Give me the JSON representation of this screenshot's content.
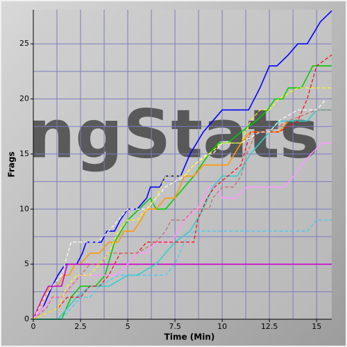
{
  "chart_data": {
    "type": "line",
    "watermark": "ngStats",
    "xlabel": "Time (Min)",
    "ylabel": "Frags",
    "xlim": [
      0,
      15.8
    ],
    "ylim": [
      0,
      28.1
    ],
    "xticks": [
      0,
      2.5,
      5,
      7.5,
      10,
      12.5,
      15
    ],
    "yticks": [
      0,
      5,
      10,
      15,
      20,
      25
    ],
    "xminor": [
      1.25,
      3.75,
      6.25,
      8.75,
      11.25,
      13.75
    ],
    "yminor": [
      2.5,
      7.5,
      12.5,
      17.5,
      22.5
    ],
    "grid": true,
    "series": [
      {
        "color": "#0000ff",
        "dashed": false,
        "x": [
          0,
          0.5,
          1,
          1.3,
          1.7,
          2.3,
          2.6,
          2.8,
          3.6,
          3.9,
          4.3,
          4.6,
          5,
          5.5,
          6,
          6.2,
          6.7,
          7,
          7.8,
          8.3,
          9,
          9.5,
          10,
          10.3,
          11.4,
          12,
          12.5,
          12.9,
          13.5,
          14,
          14.5,
          15.2,
          15.8
        ],
        "values": [
          0,
          1,
          3,
          4,
          5,
          5,
          6,
          7,
          7,
          8,
          8,
          9,
          10,
          10,
          11,
          12,
          12,
          13,
          13,
          15,
          17,
          18,
          19,
          19,
          19,
          21,
          23,
          23,
          24,
          25,
          25,
          27,
          28
        ]
      },
      {
        "color": "#00cc00",
        "dashed": false,
        "x": [
          0,
          1.5,
          2,
          2.5,
          3.3,
          3.8,
          4.3,
          5,
          5.6,
          6.2,
          6.5,
          7,
          8,
          8.5,
          9.3,
          9.8,
          10.3,
          11,
          11.8,
          12.4,
          12.8,
          13.2,
          13.5,
          14.2,
          14.5,
          14.8,
          15.8
        ],
        "values": [
          0,
          0,
          2,
          3,
          3,
          4,
          7,
          9,
          10,
          11,
          10,
          10,
          12,
          13,
          15,
          16,
          16,
          17,
          18,
          19,
          20,
          20,
          21,
          21,
          22,
          23,
          23
        ]
      },
      {
        "color": "#ff9900",
        "dashed": false,
        "x": [
          0,
          0.6,
          0.9,
          1.3,
          1.6,
          1.9,
          2.2,
          2.5,
          3,
          3.5,
          4,
          4.5,
          4.8,
          5.3,
          5.7,
          6,
          6.5,
          7,
          7.5,
          8,
          8.5,
          9,
          10.3,
          11,
          11.5,
          13,
          13.5,
          14.5,
          15,
          15.8
        ],
        "values": [
          0,
          2,
          3,
          3,
          4,
          4,
          5,
          5,
          6,
          6,
          7,
          7,
          8,
          8,
          9,
          10,
          10,
          11,
          11,
          13,
          13,
          14,
          14,
          16,
          17,
          17,
          18,
          18,
          19,
          19
        ]
      },
      {
        "color": "#cc00cc",
        "dashed": false,
        "x": [
          0,
          0.5,
          0.8,
          1.5,
          1.8,
          15.8
        ],
        "values": [
          0,
          2,
          3,
          3,
          5,
          5
        ]
      },
      {
        "color": "#ff99ff",
        "dashed": false,
        "x": [
          0,
          0.5,
          1,
          1.5,
          2,
          2.5,
          4.5,
          5,
          5.5,
          6,
          6.5,
          7.3,
          8,
          8.7,
          9,
          9.3,
          9.7,
          10,
          10.7,
          11.3,
          12,
          13.3,
          13.8,
          14.2,
          14.7,
          15.3,
          15.8
        ],
        "values": [
          0,
          1,
          2,
          2,
          3,
          4,
          4,
          5,
          6,
          6,
          7,
          7,
          9,
          10,
          11,
          12,
          12,
          11,
          11,
          12,
          12,
          12,
          13,
          14,
          15,
          16,
          16
        ]
      },
      {
        "color": "#33cccc",
        "dashed": false,
        "x": [
          0,
          1.3,
          1.8,
          2.3,
          3,
          3.4,
          4,
          5,
          5.5,
          6.5,
          7,
          7.5,
          8.3,
          9,
          9.5,
          10,
          10.8,
          11.5,
          12,
          12.5,
          13,
          14.5,
          15,
          15.8
        ],
        "values": [
          0,
          0,
          1,
          2,
          3,
          3,
          3,
          4,
          4,
          5,
          6,
          7,
          8,
          10,
          12,
          13,
          13,
          15,
          16,
          17,
          18,
          18,
          19,
          19
        ]
      },
      {
        "color": "#ff0000",
        "dashed": true,
        "x": [
          0,
          1.3,
          1.8,
          2.5,
          3,
          3.5,
          4,
          4.3,
          4.6,
          5.5,
          6,
          7,
          8.5,
          8.7,
          9.2,
          9.6,
          10.3,
          11,
          11.5,
          13,
          14,
          14.5,
          15,
          15.8
        ],
        "values": [
          0,
          1,
          2,
          2,
          3,
          3,
          4,
          5,
          6,
          6,
          7,
          7,
          7,
          9,
          11,
          12,
          13,
          14,
          17,
          17,
          18,
          20,
          23,
          24
        ]
      },
      {
        "color": "#cc6666",
        "dashed": true,
        "x": [
          0,
          0.7,
          1,
          1.5,
          2,
          2.5,
          3,
          3.5,
          4,
          5.5,
          6.5,
          7,
          7.3,
          8,
          8.5,
          9.3,
          9.5,
          10,
          10.6,
          11,
          11.3,
          11.8,
          12.5,
          13.5,
          15,
          15.8
        ],
        "values": [
          0,
          1,
          2,
          2,
          3,
          4,
          5,
          5,
          6,
          6,
          7,
          8,
          9,
          9,
          10,
          10,
          11,
          12,
          12,
          13,
          15,
          17,
          17,
          18,
          19,
          19
        ]
      },
      {
        "color": "#ffffff",
        "dashed": true,
        "x": [
          0,
          0.6,
          1,
          1.5,
          2,
          3.4,
          4,
          4.5,
          5,
          6,
          6.5,
          7,
          8,
          8.5,
          9.2,
          9.5,
          10,
          11,
          12,
          12.5,
          13,
          14,
          15,
          15.5
        ],
        "values": [
          0,
          2,
          3,
          4,
          7,
          7,
          8,
          9,
          10,
          10,
          11,
          12,
          13,
          14,
          15,
          15,
          16,
          16,
          17,
          17,
          18,
          19,
          19,
          20
        ]
      },
      {
        "color": "#ffff00",
        "dashed": true,
        "x": [
          0,
          1.3,
          1.8,
          2.3,
          3,
          3.5,
          4,
          4.5,
          5,
          5.5,
          6,
          6.5,
          7,
          8,
          8.5,
          9.3,
          10,
          11,
          11.5,
          12,
          12.5,
          13,
          14,
          15.8
        ],
        "values": [
          0,
          1,
          3,
          4,
          4,
          5,
          6,
          8,
          9,
          9,
          10,
          11,
          13,
          13,
          14,
          15,
          16,
          16,
          18,
          19,
          19,
          20,
          21,
          21
        ]
      },
      {
        "color": "#33ccff",
        "dashed": true,
        "x": [
          0,
          1.5,
          2,
          2.5,
          3,
          3.5,
          4.5,
          7,
          7.5,
          8,
          8.5,
          14.5,
          15,
          15.8
        ],
        "values": [
          0,
          0,
          1,
          2,
          2,
          3,
          4,
          4,
          5,
          7,
          8,
          8,
          9,
          9
        ]
      }
    ]
  }
}
